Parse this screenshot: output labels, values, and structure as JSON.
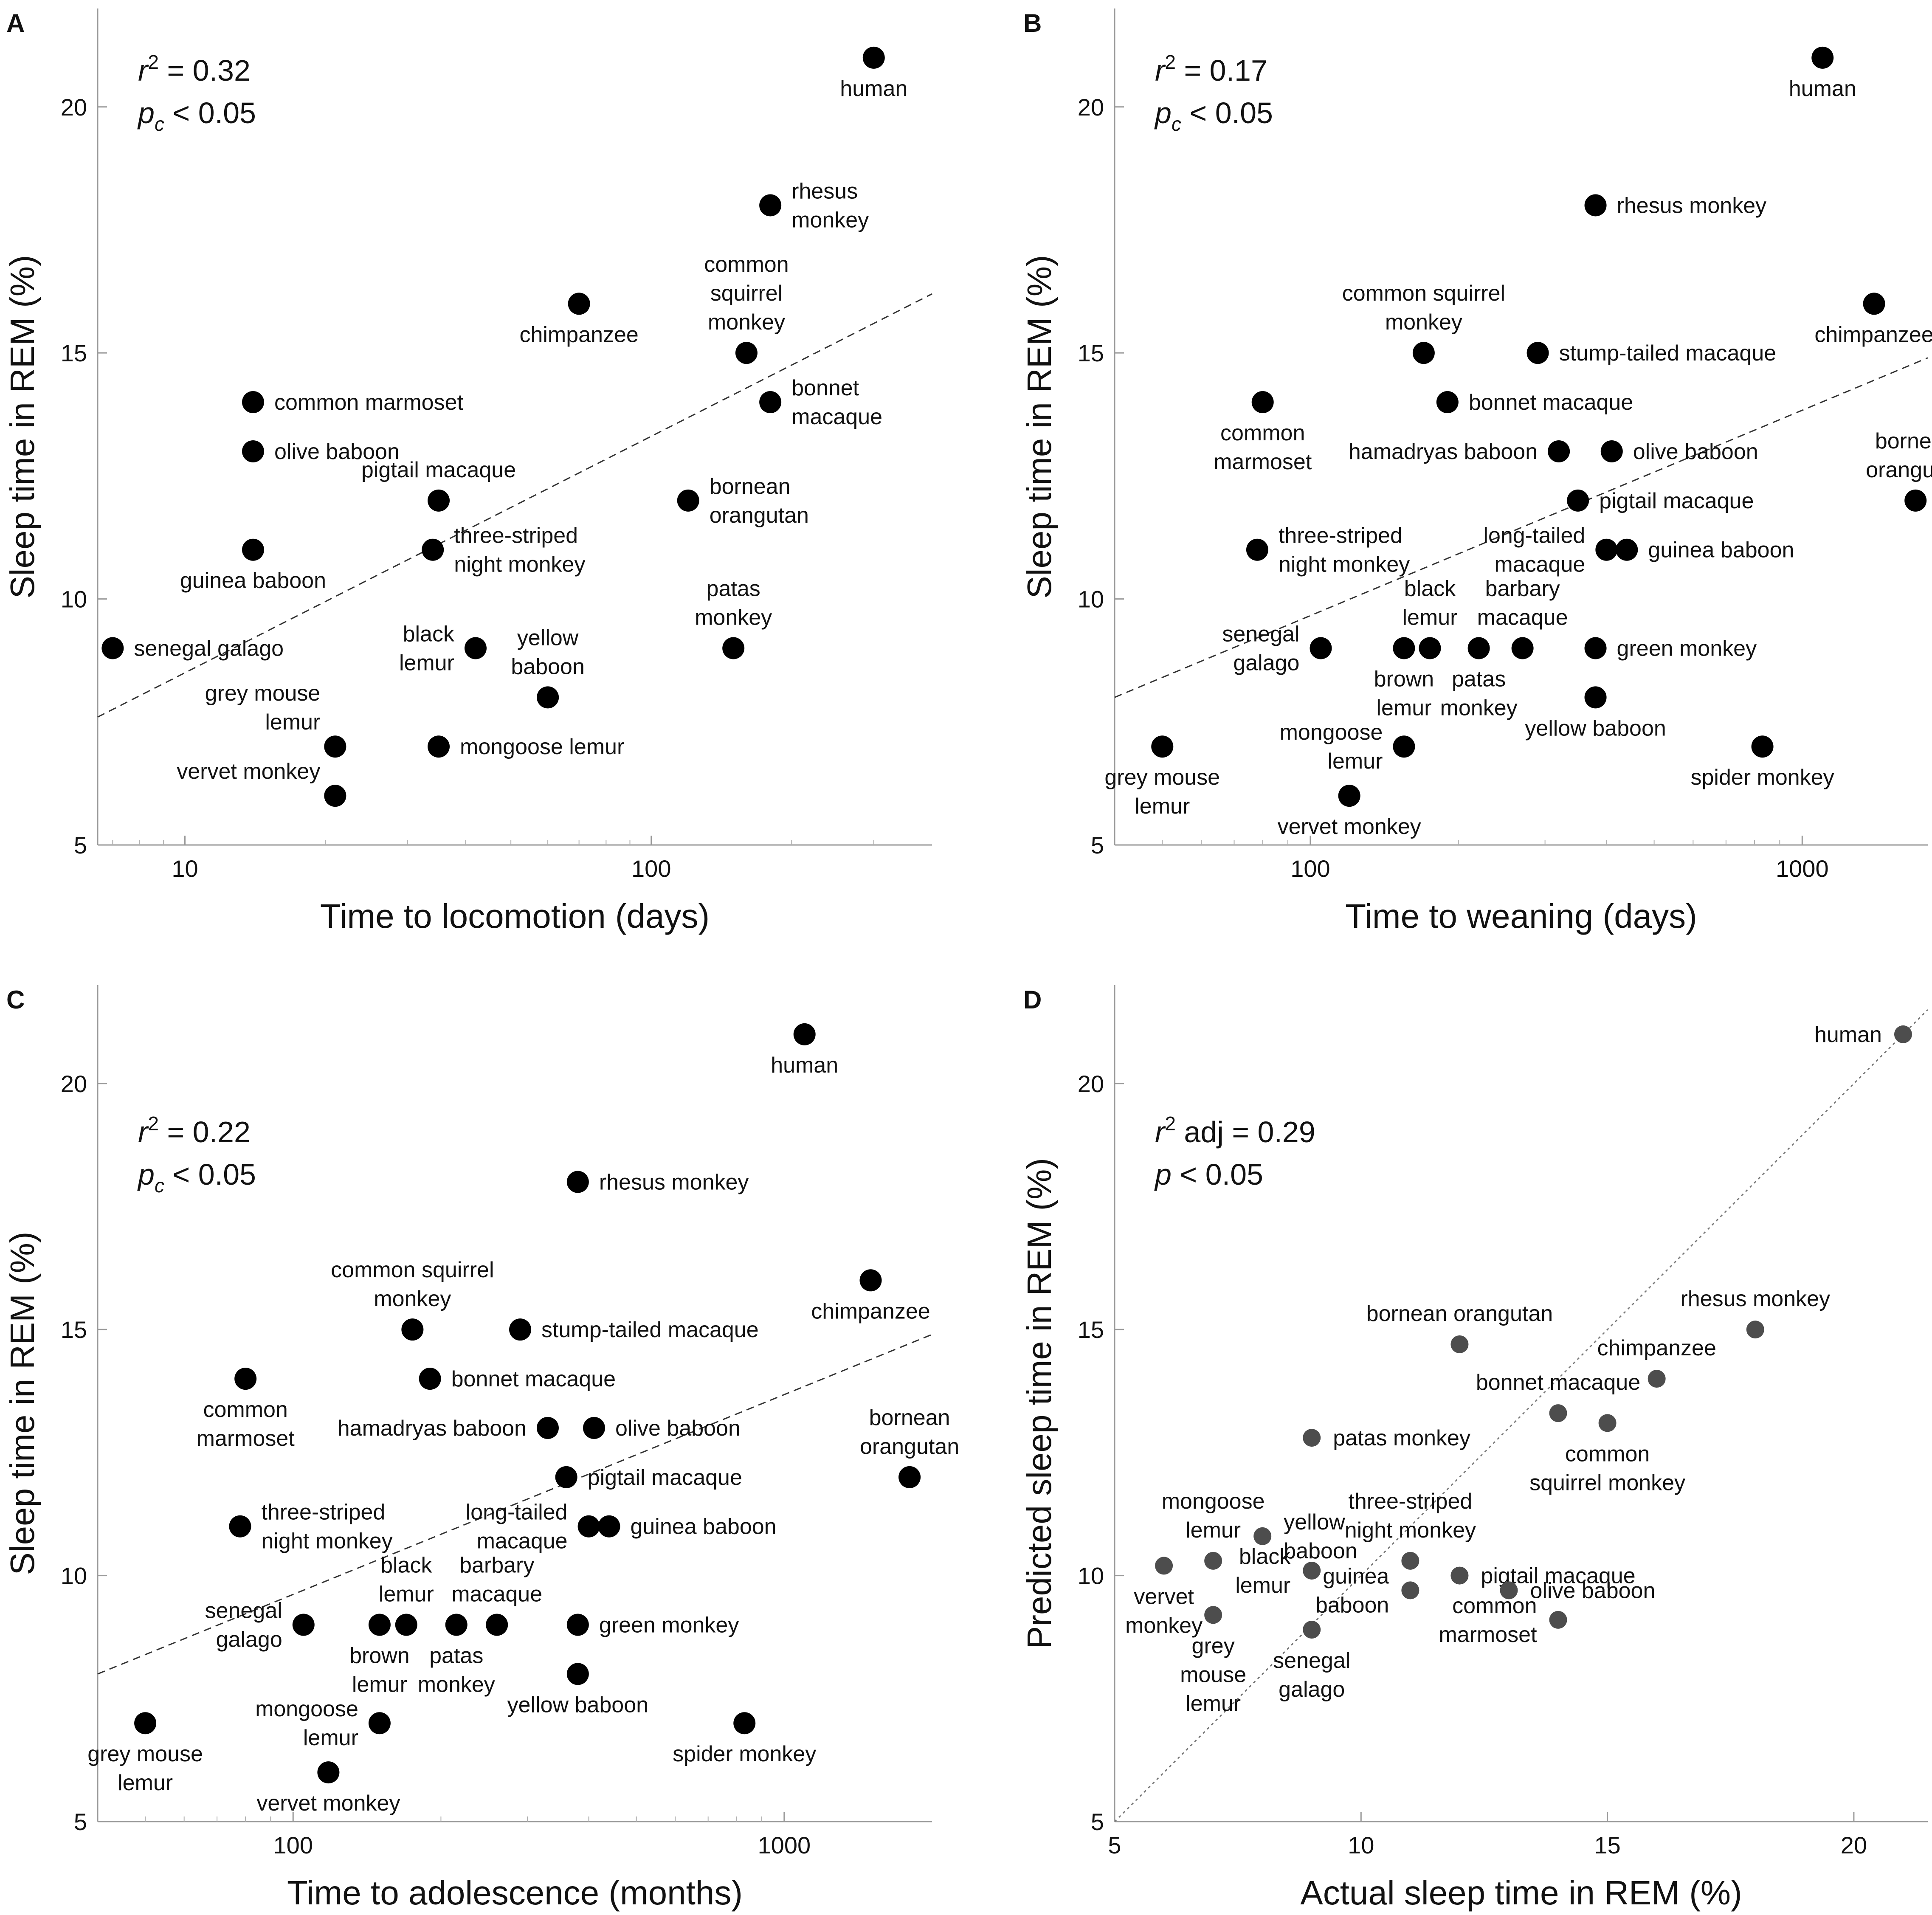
{
  "figure": {
    "chart_data": [
      {
        "panel": "A",
        "type": "scatter",
        "xscale": "log",
        "xlim": [
          6.5,
          400
        ],
        "ylim": [
          5,
          22
        ],
        "xticks": [
          10,
          100
        ],
        "xtick_labels": [
          "10",
          "100"
        ],
        "yticks": [
          5,
          10,
          15,
          20
        ],
        "ytick_labels": [
          "5",
          "10",
          "15",
          "20"
        ],
        "xlabel": "Time to locomotion (days)",
        "ylabel": "Sleep time in REM (%)",
        "stat_line1": "r2 = 0.32",
        "stat_line2": "pc < 0.05",
        "dot_color": "#000000",
        "fit_line": {
          "style": "dashed",
          "x": [
            6.5,
            400
          ],
          "y": [
            7.6,
            16.2
          ]
        },
        "points": [
          {
            "x": 300,
            "y": 21,
            "label": [
              "human"
            ],
            "pos": "below"
          },
          {
            "x": 180,
            "y": 18,
            "label": [
              "rhesus",
              "monkey"
            ],
            "pos": "right"
          },
          {
            "x": 70,
            "y": 16,
            "label": [
              "chimpanzee"
            ],
            "pos": "below"
          },
          {
            "x": 160,
            "y": 15,
            "label": [
              "common",
              "squirrel",
              "monkey"
            ],
            "pos": "above"
          },
          {
            "x": 180,
            "y": 14,
            "label": [
              "bonnet",
              "macaque"
            ],
            "pos": "right"
          },
          {
            "x": 14,
            "y": 14,
            "label": [
              "common marmoset"
            ],
            "pos": "right"
          },
          {
            "x": 14,
            "y": 13,
            "label": [
              "olive baboon"
            ],
            "pos": "right"
          },
          {
            "x": 35,
            "y": 12,
            "label": [
              "pigtail macaque"
            ],
            "pos": "above"
          },
          {
            "x": 120,
            "y": 12,
            "label": [
              "bornean",
              "orangutan"
            ],
            "pos": "right"
          },
          {
            "x": 14,
            "y": 11,
            "label": [
              "guinea baboon"
            ],
            "pos": "below"
          },
          {
            "x": 34,
            "y": 11,
            "label": [
              "three-striped",
              "night monkey"
            ],
            "pos": "right"
          },
          {
            "x": 42,
            "y": 9,
            "label": [
              "black",
              "lemur"
            ],
            "pos": "left"
          },
          {
            "x": 150,
            "y": 9,
            "label": [
              "patas",
              "monkey"
            ],
            "pos": "above"
          },
          {
            "x": 7,
            "y": 9,
            "label": [
              "senegal galago"
            ],
            "pos": "right"
          },
          {
            "x": 60,
            "y": 8,
            "label": [
              "yellow",
              "baboon"
            ],
            "pos": "above"
          },
          {
            "x": 21,
            "y": 7,
            "label": [
              "grey mouse",
              "lemur"
            ],
            "pos": "left-up"
          },
          {
            "x": 35,
            "y": 7,
            "label": [
              "mongoose lemur"
            ],
            "pos": "right"
          },
          {
            "x": 21,
            "y": 6,
            "label": [
              "vervet monkey"
            ],
            "pos": "left-up"
          }
        ]
      },
      {
        "panel": "B",
        "type": "scatter",
        "xscale": "log",
        "xlim": [
          40,
          1800
        ],
        "ylim": [
          5,
          22
        ],
        "xticks": [
          100,
          1000
        ],
        "xtick_labels": [
          "100",
          "1000"
        ],
        "yticks": [
          5,
          10,
          15,
          20
        ],
        "ytick_labels": [
          "5",
          "10",
          "15",
          "20"
        ],
        "xlabel": "Time to weaning (days)",
        "ylabel": "Sleep time in REM (%)",
        "stat_line1": "r2 = 0.17",
        "stat_line2": "pc < 0.05",
        "dot_color": "#000000",
        "fit_line": {
          "style": "dashed",
          "x": [
            40,
            1800
          ],
          "y": [
            8.0,
            14.9
          ]
        },
        "points": [
          {
            "x": 1100,
            "y": 21,
            "label": [
              "human"
            ],
            "pos": "below"
          },
          {
            "x": 380,
            "y": 18,
            "label": [
              "rhesus monkey"
            ],
            "pos": "right"
          },
          {
            "x": 1400,
            "y": 16,
            "label": [
              "chimpanzee"
            ],
            "pos": "below"
          },
          {
            "x": 170,
            "y": 15,
            "label": [
              "common squirrel",
              "monkey"
            ],
            "pos": "above"
          },
          {
            "x": 290,
            "y": 15,
            "label": [
              "stump-tailed macaque"
            ],
            "pos": "right"
          },
          {
            "x": 80,
            "y": 14,
            "label": [
              "common",
              "marmoset"
            ],
            "pos": "below"
          },
          {
            "x": 190,
            "y": 14,
            "label": [
              "bonnet macaque"
            ],
            "pos": "right"
          },
          {
            "x": 320,
            "y": 13,
            "label": [
              "hamadryas baboon"
            ],
            "pos": "left"
          },
          {
            "x": 410,
            "y": 13,
            "label": [
              "olive baboon"
            ],
            "pos": "right"
          },
          {
            "x": 1700,
            "y": 12,
            "label": [
              "bornean",
              "orangutan"
            ],
            "pos": "above"
          },
          {
            "x": 350,
            "y": 12,
            "label": [
              "pigtail macaque"
            ],
            "pos": "right"
          },
          {
            "x": 78,
            "y": 11,
            "label": [
              "three-striped",
              "night monkey"
            ],
            "pos": "right"
          },
          {
            "x": 400,
            "y": 11,
            "label": [
              "long-tailed",
              "macaque"
            ],
            "pos": "left"
          },
          {
            "x": 440,
            "y": 11,
            "label": [
              "guinea baboon"
            ],
            "pos": "right"
          },
          {
            "x": 105,
            "y": 9,
            "label": [
              "senegal",
              "galago"
            ],
            "pos": "left"
          },
          {
            "x": 155,
            "y": 9,
            "label": [
              "brown",
              "lemur"
            ],
            "pos": "below"
          },
          {
            "x": 175,
            "y": 9,
            "label": [
              "black",
              "lemur"
            ],
            "pos": "above"
          },
          {
            "x": 220,
            "y": 9,
            "label": [
              "patas",
              "monkey"
            ],
            "pos": "below"
          },
          {
            "x": 270,
            "y": 9,
            "label": [
              "barbary",
              "macaque"
            ],
            "pos": "above"
          },
          {
            "x": 380,
            "y": 9,
            "label": [
              "green monkey"
            ],
            "pos": "right"
          },
          {
            "x": 380,
            "y": 8,
            "label": [
              "yellow baboon"
            ],
            "pos": "below"
          },
          {
            "x": 50,
            "y": 7,
            "label": [
              "grey mouse",
              "lemur"
            ],
            "pos": "below"
          },
          {
            "x": 155,
            "y": 7,
            "label": [
              "mongoose",
              "lemur"
            ],
            "pos": "left"
          },
          {
            "x": 830,
            "y": 7,
            "label": [
              "spider monkey"
            ],
            "pos": "below"
          },
          {
            "x": 120,
            "y": 6,
            "label": [
              "vervet monkey"
            ],
            "pos": "below"
          }
        ]
      },
      {
        "panel": "C",
        "type": "scatter",
        "xscale": "log",
        "xlim": [
          40,
          2000
        ],
        "ylim": [
          5,
          22
        ],
        "xticks": [
          100,
          1000
        ],
        "xtick_labels": [
          "100",
          "1000"
        ],
        "yticks": [
          5,
          10,
          15,
          20
        ],
        "ytick_labels": [
          "5",
          "10",
          "15",
          "20"
        ],
        "xlabel": "Time to adolescence (months)",
        "ylabel": "Sleep time in REM (%)",
        "stat_line1": "r2 = 0.22",
        "stat_line2": "pc < 0.05",
        "dot_color": "#000000",
        "fit_line": {
          "style": "dashed",
          "x": [
            40,
            2000
          ],
          "y": [
            8.0,
            14.9
          ]
        },
        "points": [
          {
            "x": 1100,
            "y": 21,
            "label": [
              "human"
            ],
            "pos": "below"
          },
          {
            "x": 380,
            "y": 18,
            "label": [
              "rhesus monkey"
            ],
            "pos": "right"
          },
          {
            "x": 1500,
            "y": 16,
            "label": [
              "chimpanzee"
            ],
            "pos": "below"
          },
          {
            "x": 175,
            "y": 15,
            "label": [
              "common squirrel",
              "monkey"
            ],
            "pos": "above"
          },
          {
            "x": 290,
            "y": 15,
            "label": [
              "stump-tailed macaque"
            ],
            "pos": "right"
          },
          {
            "x": 80,
            "y": 14,
            "label": [
              "common",
              "marmoset"
            ],
            "pos": "below"
          },
          {
            "x": 190,
            "y": 14,
            "label": [
              "bonnet macaque"
            ],
            "pos": "right"
          },
          {
            "x": 330,
            "y": 13,
            "label": [
              "hamadryas baboon"
            ],
            "pos": "left"
          },
          {
            "x": 410,
            "y": 13,
            "label": [
              "olive baboon"
            ],
            "pos": "right"
          },
          {
            "x": 1800,
            "y": 12,
            "label": [
              "bornean",
              "orangutan"
            ],
            "pos": "above"
          },
          {
            "x": 360,
            "y": 12,
            "label": [
              "pigtail macaque"
            ],
            "pos": "right"
          },
          {
            "x": 78,
            "y": 11,
            "label": [
              "three-striped",
              "night monkey"
            ],
            "pos": "right"
          },
          {
            "x": 400,
            "y": 11,
            "label": [
              "long-tailed",
              "macaque"
            ],
            "pos": "left"
          },
          {
            "x": 440,
            "y": 11,
            "label": [
              "guinea baboon"
            ],
            "pos": "right"
          },
          {
            "x": 105,
            "y": 9,
            "label": [
              "senegal",
              "galago"
            ],
            "pos": "left"
          },
          {
            "x": 150,
            "y": 9,
            "label": [
              "brown",
              "lemur"
            ],
            "pos": "below"
          },
          {
            "x": 170,
            "y": 9,
            "label": [
              "black",
              "lemur"
            ],
            "pos": "above"
          },
          {
            "x": 215,
            "y": 9,
            "label": [
              "patas",
              "monkey"
            ],
            "pos": "below"
          },
          {
            "x": 260,
            "y": 9,
            "label": [
              "barbary",
              "macaque"
            ],
            "pos": "above"
          },
          {
            "x": 380,
            "y": 9,
            "label": [
              "green monkey"
            ],
            "pos": "right"
          },
          {
            "x": 380,
            "y": 8,
            "label": [
              "yellow baboon"
            ],
            "pos": "below"
          },
          {
            "x": 50,
            "y": 7,
            "label": [
              "grey mouse",
              "lemur"
            ],
            "pos": "below"
          },
          {
            "x": 150,
            "y": 7,
            "label": [
              "mongoose",
              "lemur"
            ],
            "pos": "left"
          },
          {
            "x": 830,
            "y": 7,
            "label": [
              "spider monkey"
            ],
            "pos": "below"
          },
          {
            "x": 118,
            "y": 6,
            "label": [
              "vervet monkey"
            ],
            "pos": "below"
          }
        ]
      },
      {
        "panel": "D",
        "type": "scatter",
        "xscale": "linear",
        "xlim": [
          5,
          21.5
        ],
        "ylim": [
          5,
          22
        ],
        "xticks": [
          5,
          10,
          15,
          20
        ],
        "xtick_labels": [
          "5",
          "10",
          "15",
          "20"
        ],
        "yticks": [
          5,
          10,
          15,
          20
        ],
        "ytick_labels": [
          "5",
          "10",
          "15",
          "20"
        ],
        "xlabel": "Actual sleep time in REM (%)",
        "ylabel": "Predicted sleep time in REM (%)",
        "stat_line1": "r2 adj = 0.29",
        "stat_line2": "p < 0.05",
        "dot_color": "#4d4d4d",
        "fit_line": {
          "style": "dotted",
          "x": [
            5,
            21.5
          ],
          "y": [
            5,
            21.5
          ]
        },
        "points": [
          {
            "x": 21,
            "y": 21,
            "label": [
              "human"
            ],
            "pos": "left"
          },
          {
            "x": 18,
            "y": 15,
            "label": [
              "rhesus monkey"
            ],
            "pos": "above"
          },
          {
            "x": 16,
            "y": 14,
            "label": [
              "chimpanzee"
            ],
            "pos": "above"
          },
          {
            "x": 12,
            "y": 14.7,
            "label": [
              "bornean orangutan"
            ],
            "pos": "above"
          },
          {
            "x": 14,
            "y": 13.3,
            "label": [
              "bonnet macaque"
            ],
            "pos": "above"
          },
          {
            "x": 15,
            "y": 13.1,
            "label": [
              "common",
              "squirrel monkey"
            ],
            "pos": "below"
          },
          {
            "x": 9,
            "y": 12.8,
            "label": [
              "patas monkey"
            ],
            "pos": "right"
          },
          {
            "x": 8,
            "y": 10.8,
            "label": [
              "yellow",
              "baboon"
            ],
            "pos": "right"
          },
          {
            "x": 7,
            "y": 10.3,
            "label": [
              "mongoose",
              "lemur"
            ],
            "pos": "above"
          },
          {
            "x": 6,
            "y": 10.2,
            "label": [
              "vervet",
              "monkey"
            ],
            "pos": "below"
          },
          {
            "x": 11,
            "y": 10.3,
            "label": [
              "three-striped",
              "night monkey"
            ],
            "pos": "above"
          },
          {
            "x": 9,
            "y": 10.1,
            "label": [
              "black",
              "lemur"
            ],
            "pos": "left"
          },
          {
            "x": 12,
            "y": 10,
            "label": [
              "pigtail macaque"
            ],
            "pos": "right"
          },
          {
            "x": 11,
            "y": 9.7,
            "label": [
              "guinea",
              "baboon"
            ],
            "pos": "left"
          },
          {
            "x": 13,
            "y": 9.7,
            "label": [
              "olive baboon"
            ],
            "pos": "right"
          },
          {
            "x": 7,
            "y": 9.2,
            "label": [
              "grey",
              "mouse",
              "lemur"
            ],
            "pos": "below"
          },
          {
            "x": 14,
            "y": 9.1,
            "label": [
              "common",
              "marmoset"
            ],
            "pos": "left"
          },
          {
            "x": 9,
            "y": 8.9,
            "label": [
              "senegal",
              "galago"
            ],
            "pos": "below"
          }
        ]
      }
    ]
  }
}
